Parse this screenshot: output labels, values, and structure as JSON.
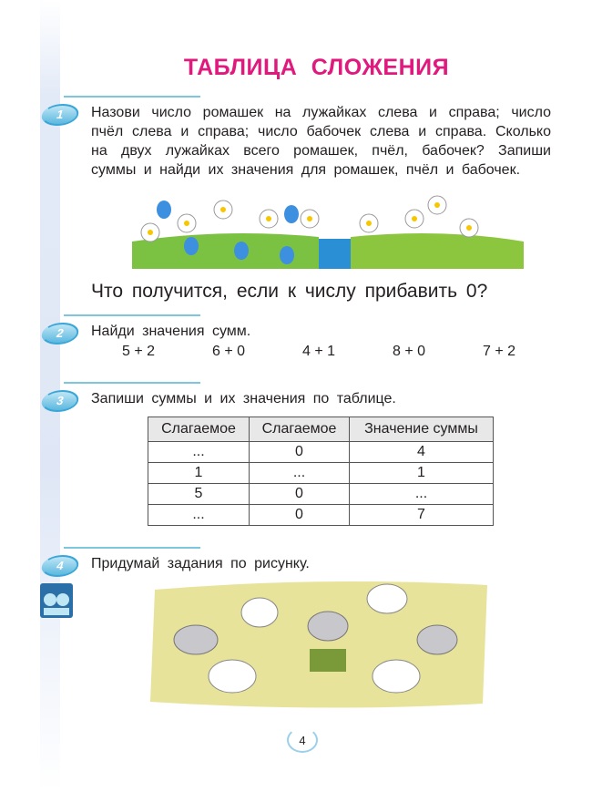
{
  "title": "ТАБЛИЦА СЛОЖЕНИЯ",
  "tasks": [
    {
      "number": "1",
      "text": "Назови число ромашек на лужайках слева и справа; число пчёл слева и справа; число бабочек слева и справа. Сколько на двух лужайках всего ромашек, пчёл, бабочек? Запиши суммы и найди их значения для ромашек, пчёл и бабочек."
    },
    {
      "number": "2",
      "text": "Найди значения сумм."
    },
    {
      "number": "3",
      "text": "Запиши суммы и их значения по таблице."
    },
    {
      "number": "4",
      "text": "Придумай задания по рисунку."
    }
  ],
  "question": "Что получится, если к числу прибавить 0?",
  "sums": [
    "5 + 2",
    "6 + 0",
    "4 + 1",
    "8 + 0",
    "7 + 2"
  ],
  "table": {
    "headers": [
      "Слагаемое",
      "Слагаемое",
      "Значение суммы"
    ],
    "rows": [
      [
        "...",
        "0",
        "4"
      ],
      [
        "1",
        "...",
        "1"
      ],
      [
        "5",
        "0",
        "..."
      ],
      [
        "...",
        "0",
        "7"
      ]
    ]
  },
  "page_number": "4",
  "colors": {
    "title": "#e0197d",
    "badge": "#3aa6d8"
  }
}
